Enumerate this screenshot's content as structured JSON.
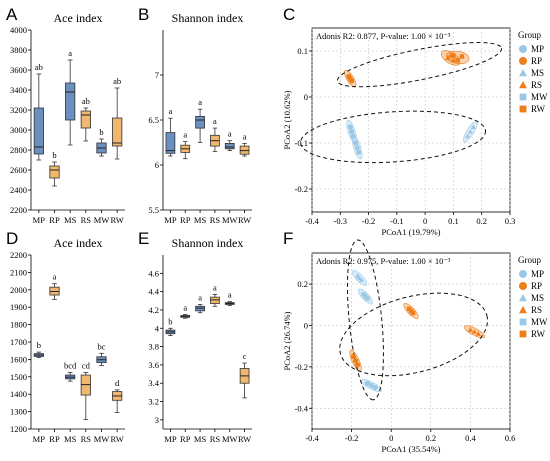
{
  "colors": {
    "blue": "#6b8fbf",
    "orange": "#f0b86e",
    "light_blue": "#9cc8e8",
    "dark_orange": "#ee7d1a",
    "box_stroke": "#222222"
  },
  "chart_data": [
    {
      "panel": "A",
      "type": "box",
      "title": "Ace index",
      "categories": [
        "MP",
        "RP",
        "MS",
        "RS",
        "MW",
        "RW"
      ],
      "ylim": [
        2200,
        4000
      ],
      "yticks": [
        2200,
        2400,
        2600,
        2800,
        3000,
        3200,
        3400,
        3600,
        3800,
        4000
      ],
      "boxes": [
        {
          "min": 2700,
          "q1": 2760,
          "median": 2830,
          "q3": 3220,
          "max": 3560,
          "color": "blue"
        },
        {
          "min": 2440,
          "q1": 2520,
          "median": 2600,
          "q3": 2640,
          "max": 2680,
          "color": "orange"
        },
        {
          "min": 2850,
          "q1": 3100,
          "median": 3380,
          "q3": 3470,
          "max": 3700,
          "color": "blue"
        },
        {
          "min": 2890,
          "q1": 3020,
          "median": 3150,
          "q3": 3190,
          "max": 3220,
          "color": "orange"
        },
        {
          "min": 2740,
          "q1": 2770,
          "median": 2820,
          "q3": 2870,
          "max": 2910,
          "color": "blue"
        },
        {
          "min": 2710,
          "q1": 2840,
          "median": 2870,
          "q3": 3120,
          "max": 3420,
          "color": "orange"
        }
      ],
      "letters": [
        "ab",
        "b",
        "a",
        "ab",
        "b",
        "ab"
      ]
    },
    {
      "panel": "B",
      "type": "box",
      "title": "Shannon index",
      "categories": [
        "MP",
        "RP",
        "MS",
        "RS",
        "MW",
        "RW"
      ],
      "ylim": [
        5.5,
        7.5
      ],
      "yticks": [
        5.5,
        6,
        6.5,
        7
      ],
      "boxes": [
        {
          "min": 6.1,
          "q1": 6.13,
          "median": 6.16,
          "q3": 6.36,
          "max": 6.52,
          "color": "blue"
        },
        {
          "min": 6.07,
          "q1": 6.14,
          "median": 6.18,
          "q3": 6.22,
          "max": 6.26,
          "color": "orange"
        },
        {
          "min": 6.25,
          "q1": 6.41,
          "median": 6.5,
          "q3": 6.54,
          "max": 6.62,
          "color": "blue"
        },
        {
          "min": 6.15,
          "q1": 6.21,
          "median": 6.27,
          "q3": 6.33,
          "max": 6.41,
          "color": "orange"
        },
        {
          "min": 6.16,
          "q1": 6.18,
          "median": 6.2,
          "q3": 6.24,
          "max": 6.27,
          "color": "blue"
        },
        {
          "min": 6.1,
          "q1": 6.12,
          "median": 6.16,
          "q3": 6.21,
          "max": 6.24,
          "color": "orange"
        }
      ],
      "letters": [
        "a",
        "a",
        "a",
        "a",
        "a",
        "a"
      ]
    },
    {
      "panel": "C",
      "type": "scatter",
      "note": "Adonis R2: 0.877, P-value: 1.00 × 10⁻³",
      "xlabel": "PCoA1 (19.79%)",
      "ylabel": "PCoA2 (10.62%)",
      "xlim": [
        -0.4,
        0.3
      ],
      "ylim": [
        -0.25,
        0.15
      ],
      "xticks": [
        -0.4,
        -0.3,
        -0.2,
        -0.1,
        0,
        0.1,
        0.2,
        0.3
      ],
      "yticks": [
        -0.2,
        -0.1,
        0,
        0.1
      ],
      "legend_title": "Group",
      "legend_position": "right",
      "series": [
        {
          "name": "MP",
          "marker": "circle",
          "color": "light_blue",
          "x": [
            -0.265,
            -0.26,
            -0.255
          ],
          "y": [
            -0.065,
            -0.075,
            -0.085
          ]
        },
        {
          "name": "RP",
          "marker": "circle",
          "color": "dark_orange",
          "x": [
            -0.27,
            -0.265,
            -0.26
          ],
          "y": [
            0.045,
            0.04,
            0.035
          ]
        },
        {
          "name": "MS",
          "marker": "triangle",
          "color": "light_blue",
          "x": [
            0.15,
            0.16,
            0.17
          ],
          "y": [
            -0.085,
            -0.075,
            -0.065
          ]
        },
        {
          "name": "RS",
          "marker": "triangle",
          "color": "dark_orange",
          "x": [
            0.08,
            0.09,
            0.1
          ],
          "y": [
            0.085,
            0.09,
            0.08
          ]
        },
        {
          "name": "MW",
          "marker": "square",
          "color": "light_blue",
          "x": [
            -0.245,
            -0.24,
            -0.235
          ],
          "y": [
            -0.1,
            -0.11,
            -0.12
          ]
        },
        {
          "name": "RW",
          "marker": "square",
          "color": "dark_orange",
          "x": [
            0.1,
            0.115,
            0.13
          ],
          "y": [
            0.09,
            0.08,
            0.088
          ]
        }
      ]
    },
    {
      "panel": "D",
      "type": "box",
      "title": "Ace index",
      "categories": [
        "MP",
        "RP",
        "MS",
        "RS",
        "MW",
        "RW"
      ],
      "ylim": [
        1200,
        2200
      ],
      "yticks": [
        1200,
        1300,
        1400,
        1500,
        1600,
        1700,
        1800,
        1900,
        2000,
        2100,
        2200
      ],
      "boxes": [
        {
          "min": 1610,
          "q1": 1617,
          "median": 1625,
          "q3": 1633,
          "max": 1642,
          "color": "blue"
        },
        {
          "min": 1945,
          "q1": 1970,
          "median": 1990,
          "q3": 2015,
          "max": 2035,
          "color": "orange"
        },
        {
          "min": 1475,
          "q1": 1488,
          "median": 1498,
          "q3": 1510,
          "max": 1525,
          "color": "blue"
        },
        {
          "min": 1255,
          "q1": 1395,
          "median": 1455,
          "q3": 1510,
          "max": 1525,
          "color": "orange"
        },
        {
          "min": 1565,
          "q1": 1582,
          "median": 1598,
          "q3": 1615,
          "max": 1635,
          "color": "blue"
        },
        {
          "min": 1295,
          "q1": 1365,
          "median": 1390,
          "q3": 1415,
          "max": 1425,
          "color": "orange"
        }
      ],
      "letters": [
        "b",
        "a",
        "bcd",
        "cd",
        "bc",
        "d"
      ]
    },
    {
      "panel": "E",
      "type": "box",
      "title": "Shannon index",
      "categories": [
        "MP",
        "RP",
        "MS",
        "RS",
        "MW",
        "RW"
      ],
      "ylim": [
        2.9,
        4.8
      ],
      "yticks": [
        3,
        3.2,
        3.4,
        3.6,
        3.8,
        4,
        4.2,
        4.4,
        4.6
      ],
      "boxes": [
        {
          "min": 3.92,
          "q1": 3.94,
          "median": 3.96,
          "q3": 3.98,
          "max": 4.0,
          "color": "blue"
        },
        {
          "min": 4.11,
          "q1": 4.12,
          "median": 4.13,
          "q3": 4.14,
          "max": 4.15,
          "color": "orange"
        },
        {
          "min": 4.17,
          "q1": 4.19,
          "median": 4.22,
          "q3": 4.24,
          "max": 4.26,
          "color": "blue"
        },
        {
          "min": 4.24,
          "q1": 4.27,
          "median": 4.31,
          "q3": 4.34,
          "max": 4.37,
          "color": "orange"
        },
        {
          "min": 4.25,
          "q1": 4.26,
          "median": 4.27,
          "q3": 4.28,
          "max": 4.29,
          "color": "blue"
        },
        {
          "min": 3.24,
          "q1": 3.4,
          "median": 3.48,
          "q3": 3.56,
          "max": 3.62,
          "color": "orange"
        }
      ],
      "letters": [
        "b",
        "a",
        "a",
        "a",
        "a",
        "c"
      ]
    },
    {
      "panel": "F",
      "type": "scatter",
      "note": "Adonis R2: 0.975, P-value: 1.00 × 10⁻³",
      "xlabel": "PCoA1 (35.54%)",
      "ylabel": "PCoA2 (26.74%)",
      "xlim": [
        -0.4,
        0.6
      ],
      "ylim": [
        -0.5,
        0.35
      ],
      "xticks": [
        -0.4,
        -0.2,
        0,
        0.2,
        0.4,
        0.6
      ],
      "yticks": [
        -0.4,
        -0.2,
        0,
        0.2
      ],
      "legend_title": "Group",
      "legend_position": "right",
      "series": [
        {
          "name": "MP",
          "marker": "circle",
          "color": "light_blue",
          "x": [
            -0.12,
            -0.1,
            -0.08
          ],
          "y": [
            -0.28,
            -0.29,
            -0.3
          ]
        },
        {
          "name": "RP",
          "marker": "circle",
          "color": "dark_orange",
          "x": [
            -0.19,
            -0.18,
            -0.17
          ],
          "y": [
            -0.15,
            -0.17,
            -0.19
          ]
        },
        {
          "name": "MS",
          "marker": "triangle",
          "color": "light_blue",
          "x": [
            -0.17,
            -0.16,
            -0.15
          ],
          "y": [
            0.24,
            0.23,
            0.22
          ]
        },
        {
          "name": "RS",
          "marker": "triangle",
          "color": "dark_orange",
          "x": [
            0.4,
            0.42,
            0.44
          ],
          "y": [
            -0.02,
            -0.03,
            -0.04
          ]
        },
        {
          "name": "MW",
          "marker": "square",
          "color": "light_blue",
          "x": [
            -0.14,
            -0.13,
            -0.12
          ],
          "y": [
            0.15,
            0.14,
            0.13
          ]
        },
        {
          "name": "RW",
          "marker": "square",
          "color": "dark_orange",
          "x": [
            0.09,
            0.1,
            0.11
          ],
          "y": [
            0.08,
            0.07,
            0.06
          ]
        }
      ]
    }
  ]
}
